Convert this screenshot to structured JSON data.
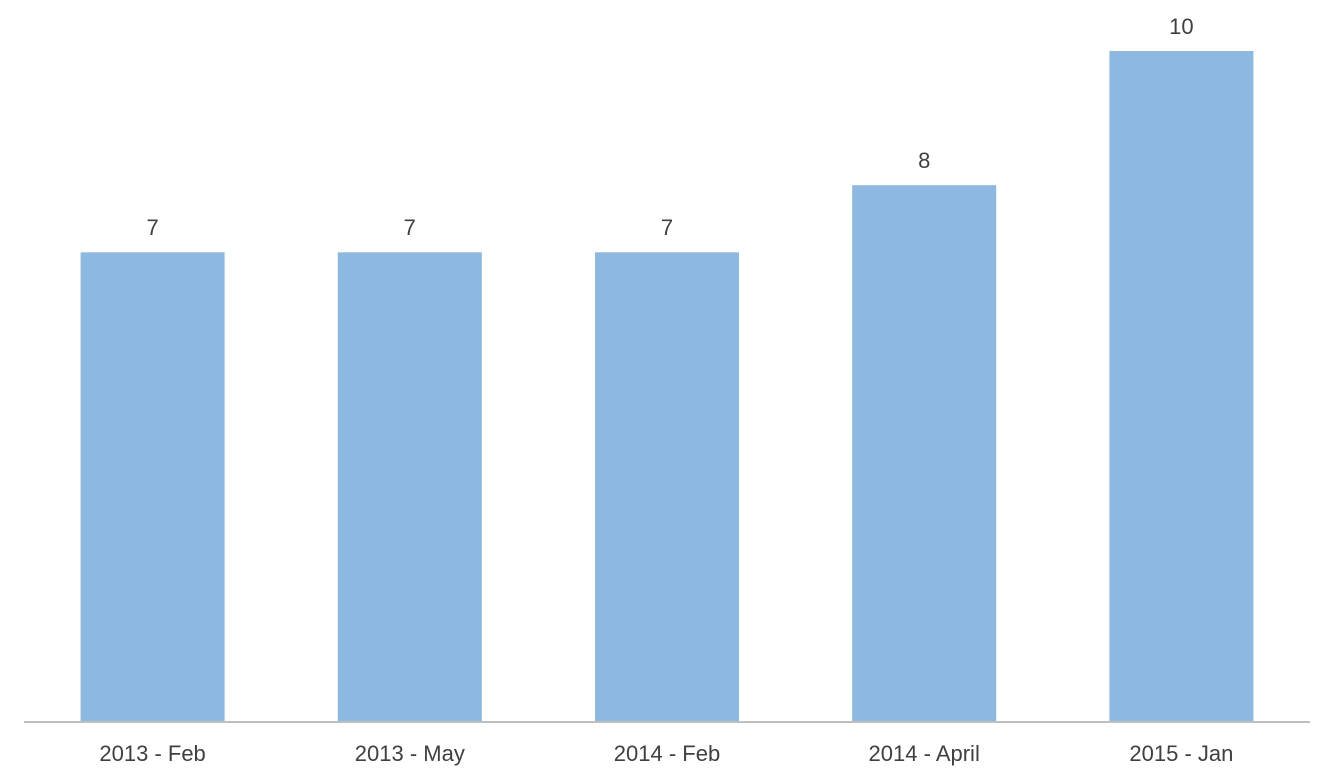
{
  "chart_data": {
    "type": "bar",
    "categories": [
      "2013 - Feb",
      "2013 - May",
      "2014 - Feb",
      "2014 - April",
      "2015 - Jan"
    ],
    "values": [
      7,
      7,
      7,
      8,
      10
    ],
    "color": "#8db8e0",
    "ylim": [
      0,
      10
    ],
    "data_labels": true
  }
}
